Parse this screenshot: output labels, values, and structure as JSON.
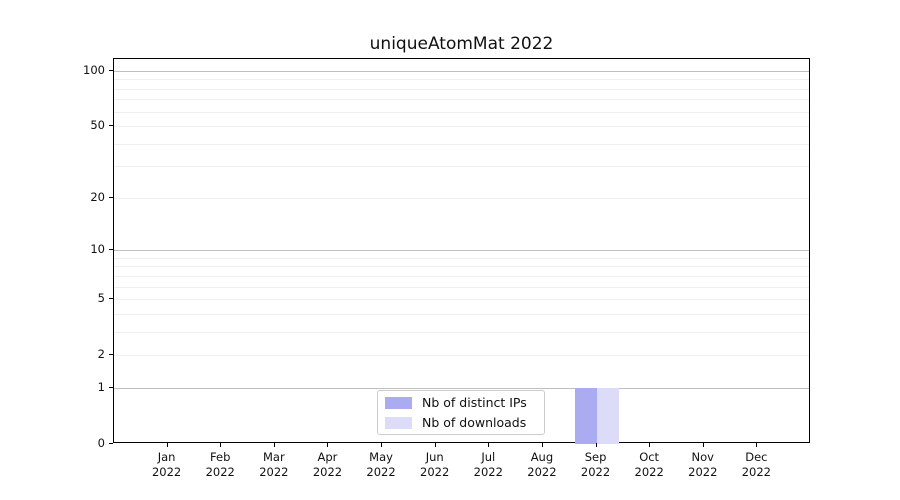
{
  "chart_data": {
    "type": "bar",
    "title": "uniqueAtomMat 2022",
    "categories": [
      "Jan 2022",
      "Feb 2022",
      "Mar 2022",
      "Apr 2022",
      "May 2022",
      "Jun 2022",
      "Jul 2022",
      "Aug 2022",
      "Sep 2022",
      "Oct 2022",
      "Nov 2022",
      "Dec 2022"
    ],
    "series": [
      {
        "name": "Nb of distinct IPs",
        "color": "#ababf2",
        "values": [
          0,
          0,
          0,
          0,
          0,
          0,
          0,
          0,
          1,
          0,
          0,
          0
        ]
      },
      {
        "name": "Nb of downloads",
        "color": "#dcdcf8",
        "values": [
          0,
          0,
          0,
          0,
          0,
          0,
          0,
          0,
          1,
          0,
          0,
          0
        ]
      }
    ],
    "xlabel": "",
    "ylabel": "",
    "yscale": "log1p",
    "ylim": [
      0,
      116
    ],
    "y_ticks": [
      0,
      1,
      2,
      5,
      10,
      20,
      50,
      100
    ],
    "y_major_gridlines": [
      1,
      10,
      100
    ],
    "y_minor_gridlines": [
      2,
      3,
      4,
      5,
      6,
      7,
      8,
      9,
      20,
      30,
      40,
      50,
      60,
      70,
      80,
      90
    ],
    "grid": true,
    "legend_position": "lower center"
  },
  "colors": {
    "background": "#ffffff",
    "spine": "#000000",
    "major_grid": "#bfbfbf",
    "minor_grid": "#efefef",
    "text": "#111111",
    "legend_border": "#cccccc"
  }
}
